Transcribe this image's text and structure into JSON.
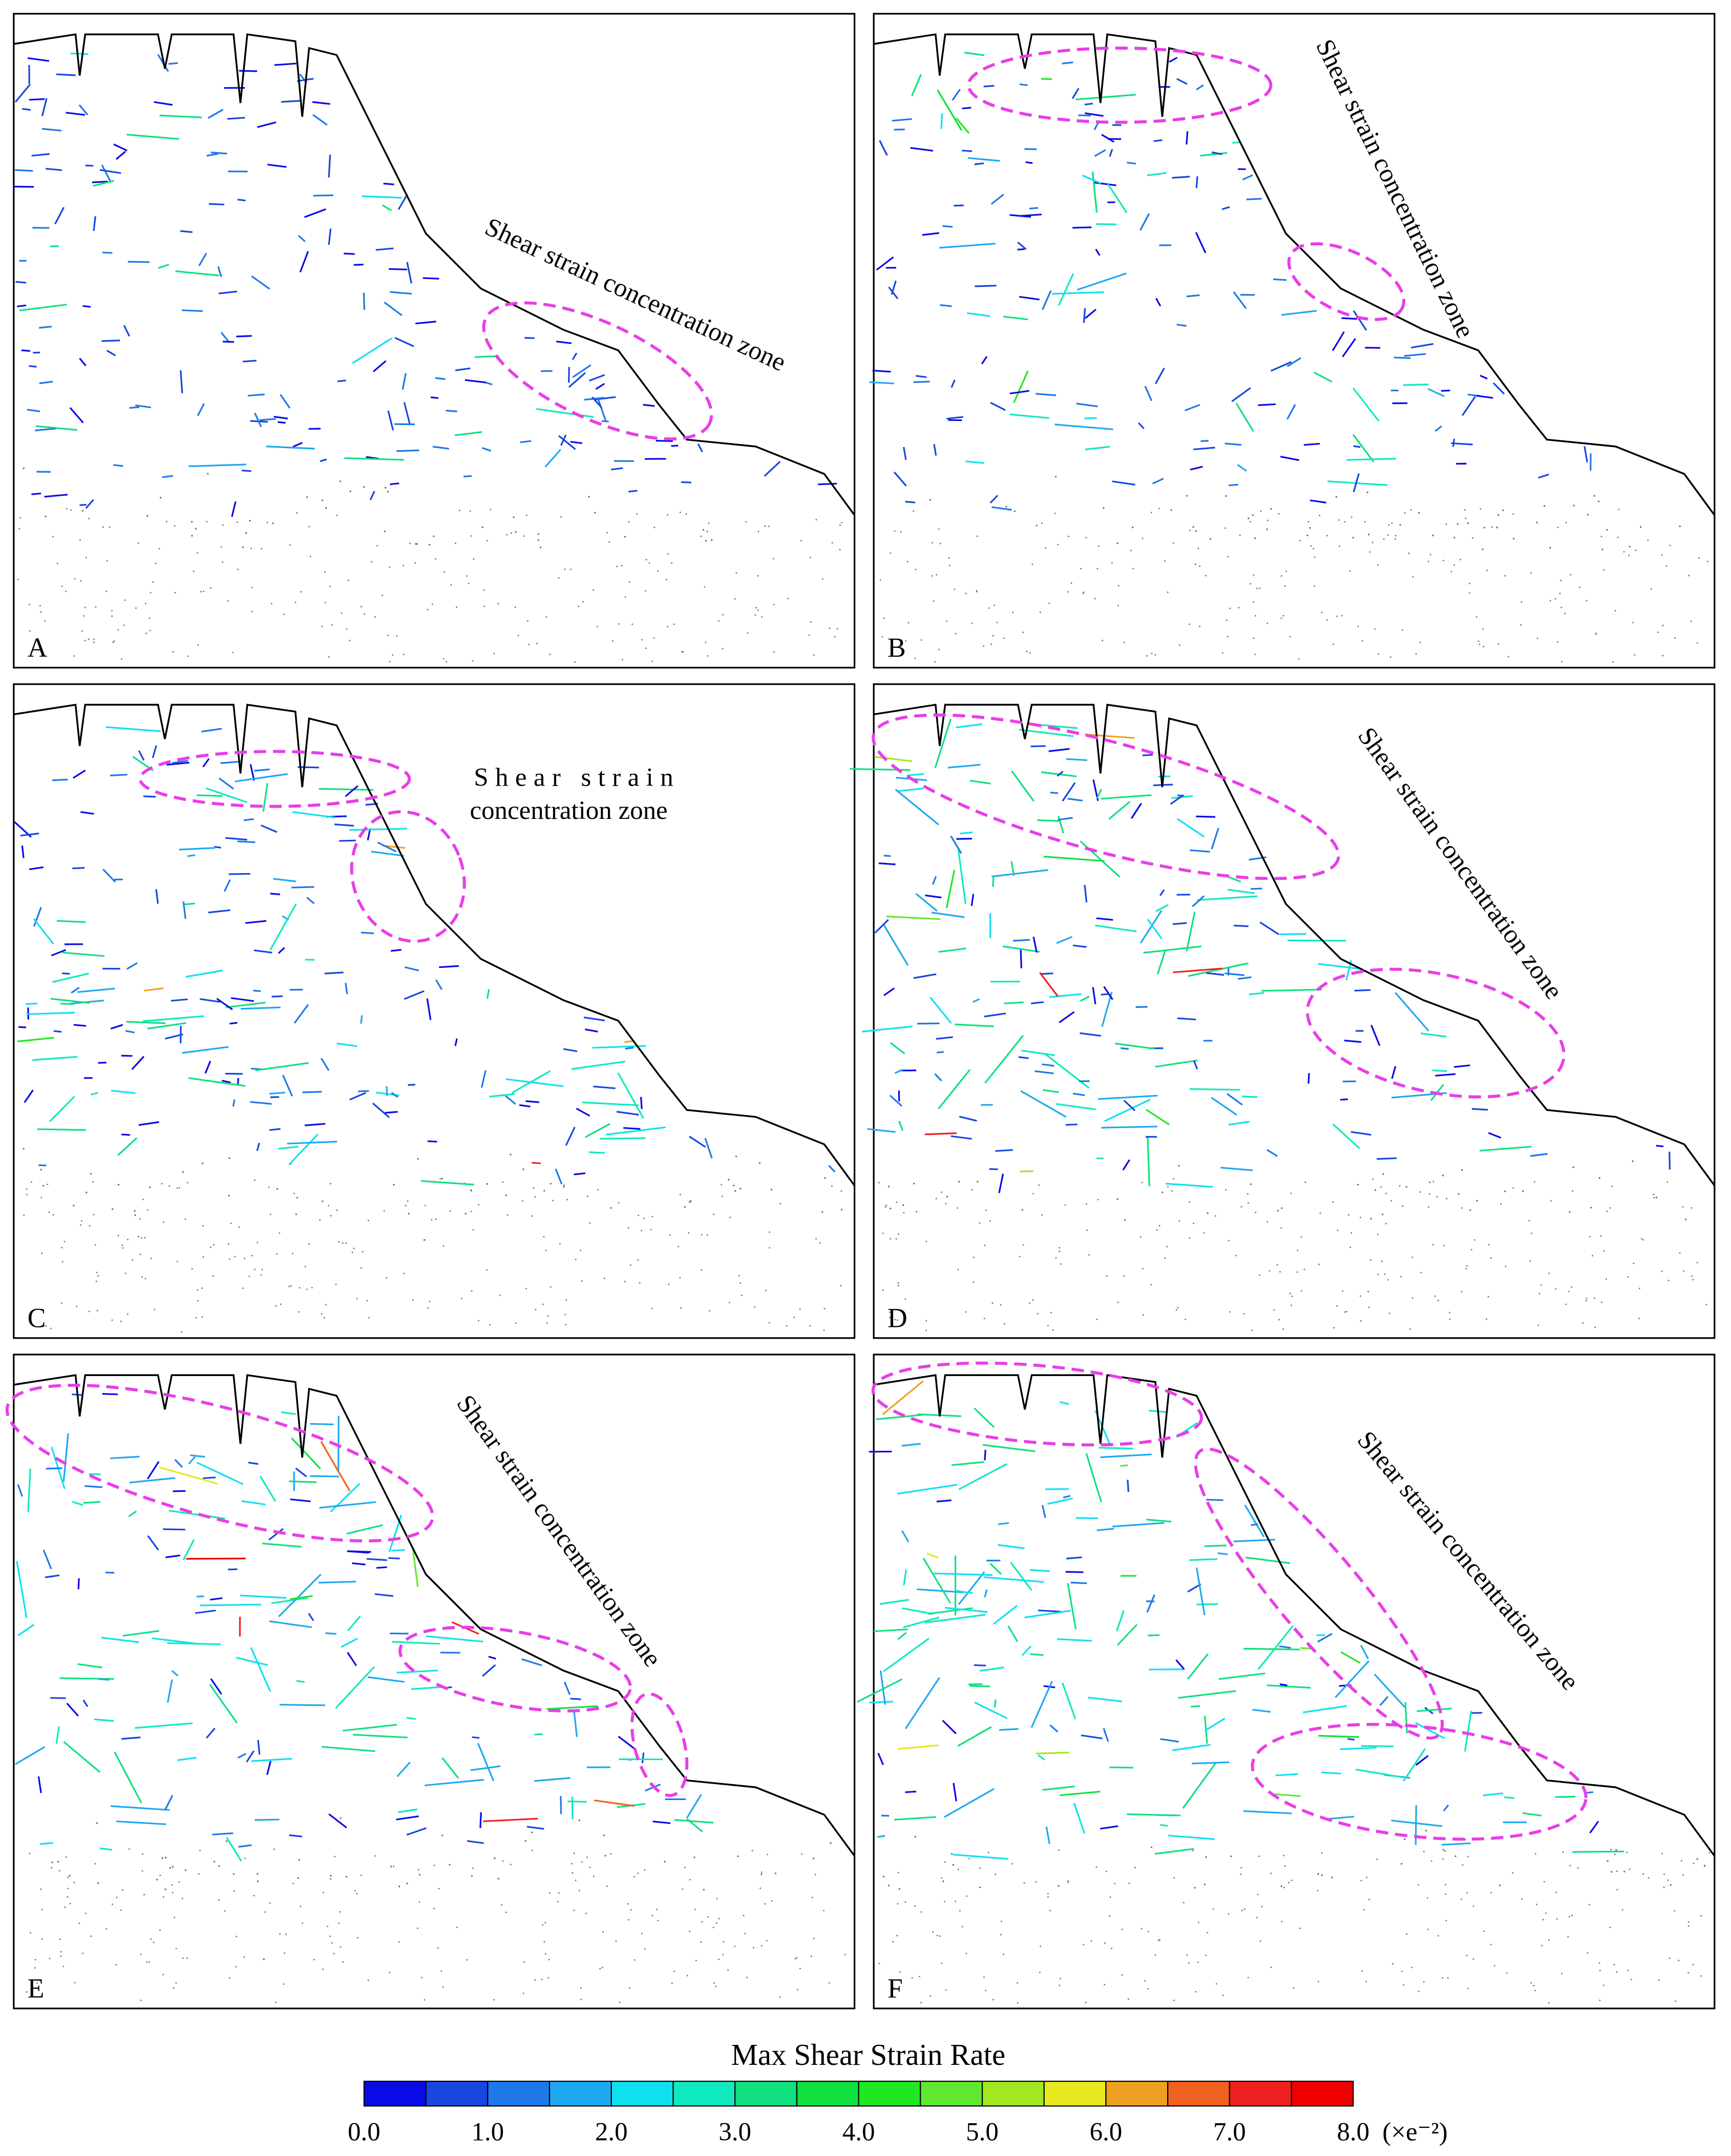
{
  "panels": [
    {
      "label": "A",
      "annotation": "Shear strain concentration zone"
    },
    {
      "label": "B",
      "annotation": "Shear strain concentration zone"
    },
    {
      "label": "C",
      "annotation": [
        "Shear strain",
        "concentration zone"
      ]
    },
    {
      "label": "D",
      "annotation": "Shear strain concentration zone"
    },
    {
      "label": "E",
      "annotation": "Shear strain concentration zone"
    },
    {
      "label": "F",
      "annotation": "Shear strain concentration zone"
    }
  ],
  "colorbar": {
    "title": "Max Shear Strain Rate",
    "tick_labels": [
      "0.0",
      "1.0",
      "2.0",
      "3.0",
      "4.0",
      "5.0",
      "6.0",
      "7.0",
      "8.0"
    ],
    "unit": "(×e⁻²)",
    "colors": [
      "#0a0ae6",
      "#1846e0",
      "#1e78e8",
      "#1ea8f0",
      "#10e0f0",
      "#10e8c0",
      "#10e080",
      "#10e040",
      "#20e820",
      "#60e830",
      "#a0e820",
      "#e8e820",
      "#f0a020",
      "#f06020",
      "#f02020",
      "#f00000"
    ]
  }
}
